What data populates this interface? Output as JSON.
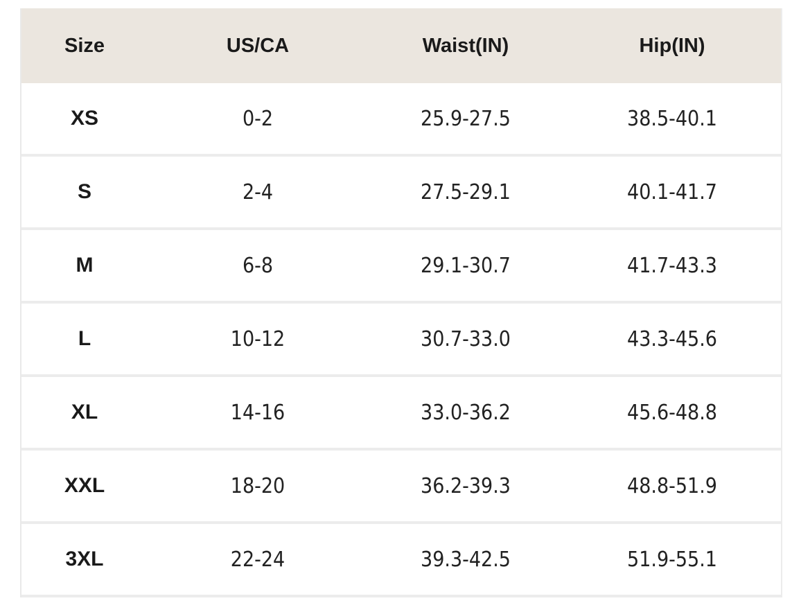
{
  "table": {
    "headers": [
      "Size",
      "US/CA",
      "Waist(IN)",
      "Hip(IN)"
    ],
    "rows": [
      [
        "XS",
        "0-2",
        "25.9-27.5",
        "38.5-40.1"
      ],
      [
        "S",
        "2-4",
        "27.5-29.1",
        "40.1-41.7"
      ],
      [
        "M",
        "6-8",
        "29.1-30.7",
        "41.7-43.3"
      ],
      [
        "L",
        "10-12",
        "30.7-33.0",
        "43.3-45.6"
      ],
      [
        "XL",
        "14-16",
        "33.0-36.2",
        "45.6-48.8"
      ],
      [
        "XXL",
        "18-20",
        "36.2-39.3",
        "48.8-51.9"
      ],
      [
        "3XL",
        "22-24",
        "39.3-42.5",
        "51.9-55.1"
      ]
    ],
    "header_bg": "#ebe6df"
  }
}
